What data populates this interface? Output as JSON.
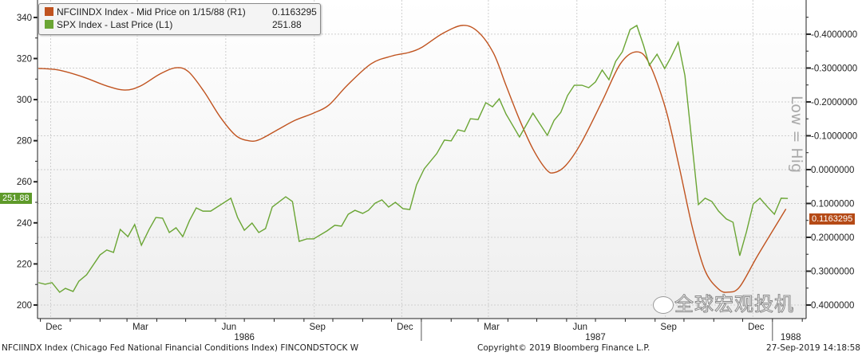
{
  "chart_data": {
    "type": "line",
    "xlim": [
      "1985-11-28",
      "1988-02-05"
    ],
    "x_tick_labels": [
      "Dec",
      "Mar",
      "Jun",
      "Sep",
      "Dec",
      "Mar",
      "Jun",
      "Sep",
      "Dec"
    ],
    "x_tick_label_dates": [
      "1985-12-15",
      "1986-03-15",
      "1986-06-15",
      "1986-09-15",
      "1986-12-15",
      "1987-03-15",
      "1987-06-15",
      "1987-09-15",
      "1987-12-15"
    ],
    "year_labels": [
      {
        "label": "1986",
        "date": "1986-07-01"
      },
      {
        "label": "1987",
        "date": "1987-07-01"
      },
      {
        "label": "1988",
        "date": "1988-01-20"
      }
    ],
    "year_separators": [
      "1987-01-01",
      "1988-01-01"
    ],
    "grid": true,
    "legend_position": "top-left",
    "left_axis": {
      "ylim": [
        193.4,
        348.5
      ],
      "ticks": [
        200,
        220,
        240,
        260,
        280,
        300,
        320,
        340
      ]
    },
    "right_axis": {
      "ylim": [
        -0.501,
        0.44
      ],
      "inverted": true,
      "ticks": [
        "-0.4000000",
        "-0.3000000",
        "-0.2000000",
        "-0.1000000",
        "0.0000000",
        "0.1000000",
        "0.2000000",
        "0.3000000",
        "0.4000000"
      ],
      "tick_values": [
        -0.4,
        -0.3,
        -0.2,
        -0.1,
        0,
        0.1,
        0.2,
        0.3,
        0.4
      ],
      "label": "Low = Hig"
    },
    "series": [
      {
        "name": "NFCIINDX Index - Mid Price on 1/15/88 (R1)",
        "last_value": "0.1163295",
        "axis": "right",
        "color": "#c0531f",
        "points": [
          [
            "1985-11-29",
            -0.299
          ],
          [
            "1985-12-20",
            -0.294
          ],
          [
            "1986-01-15",
            -0.273
          ],
          [
            "1986-02-08",
            -0.247
          ],
          [
            "1986-02-27",
            -0.235
          ],
          [
            "1986-03-15",
            -0.247
          ],
          [
            "1986-04-04",
            -0.282
          ],
          [
            "1986-04-21",
            -0.301
          ],
          [
            "1986-05-04",
            -0.289
          ],
          [
            "1986-05-20",
            -0.231
          ],
          [
            "1986-06-06",
            -0.155
          ],
          [
            "1986-06-22",
            -0.101
          ],
          [
            "1986-07-06",
            -0.085
          ],
          [
            "1986-07-17",
            -0.089
          ],
          [
            "1986-08-06",
            -0.12
          ],
          [
            "1986-08-23",
            -0.146
          ],
          [
            "1986-09-11",
            -0.167
          ],
          [
            "1986-09-27",
            -0.191
          ],
          [
            "1986-10-16",
            -0.249
          ],
          [
            "1986-11-10",
            -0.313
          ],
          [
            "1986-12-02",
            -0.336
          ],
          [
            "1986-12-19",
            -0.346
          ],
          [
            "1987-01-02",
            -0.362
          ],
          [
            "1987-01-23",
            -0.402
          ],
          [
            "1987-02-13",
            -0.426
          ],
          [
            "1987-03-01",
            -0.407
          ],
          [
            "1987-03-17",
            -0.344
          ],
          [
            "1987-03-30",
            -0.249
          ],
          [
            "1987-04-13",
            -0.148
          ],
          [
            "1987-04-27",
            -0.061
          ],
          [
            "1987-05-11",
            0.0
          ],
          [
            "1987-05-19",
            0.009
          ],
          [
            "1987-05-31",
            -0.012
          ],
          [
            "1987-06-16",
            -0.078
          ],
          [
            "1987-07-08",
            -0.202
          ],
          [
            "1987-07-27",
            -0.313
          ],
          [
            "1987-08-13",
            -0.348
          ],
          [
            "1987-08-26",
            -0.313
          ],
          [
            "1987-09-12",
            -0.179
          ],
          [
            "1987-09-26",
            -0.009
          ],
          [
            "1987-10-10",
            0.174
          ],
          [
            "1987-10-23",
            0.299
          ],
          [
            "1987-11-06",
            0.353
          ],
          [
            "1987-11-16",
            0.362
          ],
          [
            "1987-11-28",
            0.346
          ],
          [
            "1987-12-17",
            0.252
          ],
          [
            "1988-01-15",
            0.1163295
          ]
        ]
      },
      {
        "name": "SPX Index - Last Price (L1)",
        "last_value": "251.88",
        "axis": "left",
        "color": "#6aa534",
        "points": [
          [
            "1985-11-29",
            210.9
          ],
          [
            "1985-12-06",
            210.1
          ],
          [
            "1985-12-13",
            210.9
          ],
          [
            "1985-12-21",
            206.2
          ],
          [
            "1985-12-27",
            208.1
          ],
          [
            "1986-01-04",
            206.6
          ],
          [
            "1986-01-10",
            211.6
          ],
          [
            "1986-01-18",
            214.7
          ],
          [
            "1986-02-01",
            224.4
          ],
          [
            "1986-02-08",
            226.8
          ],
          [
            "1986-02-15",
            225.6
          ],
          [
            "1986-02-22",
            236.8
          ],
          [
            "1986-03-02",
            233.3
          ],
          [
            "1986-03-09",
            239.2
          ],
          [
            "1986-03-16",
            229.1
          ],
          [
            "1986-03-24",
            236.8
          ],
          [
            "1986-03-31",
            242.6
          ],
          [
            "1986-04-07",
            242.3
          ],
          [
            "1986-04-14",
            235.3
          ],
          [
            "1986-04-21",
            237.6
          ],
          [
            "1986-04-28",
            233.3
          ],
          [
            "1986-05-05",
            241.1
          ],
          [
            "1986-05-12",
            247.3
          ],
          [
            "1986-05-19",
            245.7
          ],
          [
            "1986-05-27",
            245.7
          ],
          [
            "1986-06-17",
            252.0
          ],
          [
            "1986-06-24",
            242.6
          ],
          [
            "1986-07-01",
            236.4
          ],
          [
            "1986-07-09",
            239.9
          ],
          [
            "1986-07-16",
            235.3
          ],
          [
            "1986-07-23",
            237.2
          ],
          [
            "1986-07-30",
            247.7
          ],
          [
            "1986-08-13",
            252.7
          ],
          [
            "1986-08-20",
            250.4
          ],
          [
            "1986-08-27",
            231.0
          ],
          [
            "1986-09-04",
            232.2
          ],
          [
            "1986-09-11",
            232.2
          ],
          [
            "1986-09-25",
            236.1
          ],
          [
            "1986-10-03",
            238.8
          ],
          [
            "1986-10-10",
            238.4
          ],
          [
            "1986-10-17",
            244.2
          ],
          [
            "1986-10-24",
            246.1
          ],
          [
            "1986-11-01",
            244.6
          ],
          [
            "1986-11-07",
            246.1
          ],
          [
            "1986-11-14",
            249.6
          ],
          [
            "1986-11-21",
            251.2
          ],
          [
            "1986-11-28",
            247.7
          ],
          [
            "1986-12-05",
            250.0
          ],
          [
            "1986-12-13",
            246.9
          ],
          [
            "1986-12-20",
            246.5
          ],
          [
            "1986-12-27",
            258.5
          ],
          [
            "1987-01-04",
            266.3
          ],
          [
            "1987-01-17",
            273.7
          ],
          [
            "1987-01-25",
            280.3
          ],
          [
            "1987-02-01",
            279.9
          ],
          [
            "1987-02-08",
            285.3
          ],
          [
            "1987-02-15",
            284.5
          ],
          [
            "1987-02-21",
            290.7
          ],
          [
            "1987-03-01",
            290.3
          ],
          [
            "1987-03-09",
            298.5
          ],
          [
            "1987-03-16",
            296.5
          ],
          [
            "1987-03-23",
            300.4
          ],
          [
            "1987-03-30",
            293.0
          ],
          [
            "1987-04-13",
            281.8
          ],
          [
            "1987-04-27",
            293.4
          ],
          [
            "1987-05-12",
            282.6
          ],
          [
            "1987-05-19",
            289.9
          ],
          [
            "1987-05-26",
            293.8
          ],
          [
            "1987-06-02",
            302.0
          ],
          [
            "1987-06-09",
            307.0
          ],
          [
            "1987-06-17",
            307.0
          ],
          [
            "1987-06-24",
            305.8
          ],
          [
            "1987-07-01",
            308.6
          ],
          [
            "1987-07-08",
            314.4
          ],
          [
            "1987-07-15",
            309.7
          ],
          [
            "1987-07-22",
            318.6
          ],
          [
            "1987-07-29",
            323.3
          ],
          [
            "1987-08-06",
            334.1
          ],
          [
            "1987-08-13",
            336.1
          ],
          [
            "1987-08-20",
            326.4
          ],
          [
            "1987-08-26",
            316.7
          ],
          [
            "1987-09-03",
            322.1
          ],
          [
            "1987-09-11",
            315.1
          ],
          [
            "1987-09-17",
            320.2
          ],
          [
            "1987-09-25",
            327.9
          ],
          [
            "1987-10-02",
            311.7
          ],
          [
            "1987-10-16",
            248.9
          ],
          [
            "1987-10-23",
            252.0
          ],
          [
            "1987-10-30",
            250.4
          ],
          [
            "1987-11-06",
            245.7
          ],
          [
            "1987-11-14",
            241.9
          ],
          [
            "1987-11-21",
            240.3
          ],
          [
            "1987-11-28",
            224.0
          ],
          [
            "1987-12-05",
            235.7
          ],
          [
            "1987-12-12",
            249.2
          ],
          [
            "1987-12-19",
            252.0
          ],
          [
            "1987-12-27",
            247.7
          ],
          [
            "1988-01-03",
            244.2
          ],
          [
            "1988-01-10",
            252.0
          ],
          [
            "1988-01-17",
            251.88
          ]
        ]
      }
    ]
  },
  "tags": {
    "left": "251.88",
    "right": "0.1163295"
  },
  "footer": {
    "left": "NFCIINDX Index (Chicago Fed National Financial Conditions Index) FINCONDSTOCK  W",
    "center": "Copyright© 2019 Bloomberg Finance L.P.",
    "right": "27-Sep-2019 14:18:58"
  },
  "watermark": "全球宏观投机",
  "colors": {
    "nfci": "#c0531f",
    "spx": "#6aa534",
    "grid": "#cfcfcf"
  }
}
